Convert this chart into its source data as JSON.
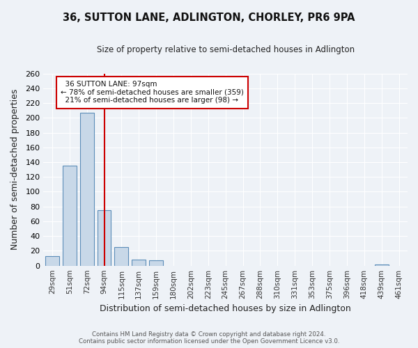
{
  "title": "36, SUTTON LANE, ADLINGTON, CHORLEY, PR6 9PA",
  "subtitle": "Size of property relative to semi-detached houses in Adlington",
  "xlabel": "Distribution of semi-detached houses by size in Adlington",
  "ylabel": "Number of semi-detached properties",
  "footer_line1": "Contains HM Land Registry data © Crown copyright and database right 2024.",
  "footer_line2": "Contains public sector information licensed under the Open Government Licence v3.0.",
  "bins": [
    "29sqm",
    "51sqm",
    "72sqm",
    "94sqm",
    "115sqm",
    "137sqm",
    "159sqm",
    "180sqm",
    "202sqm",
    "223sqm",
    "245sqm",
    "267sqm",
    "288sqm",
    "310sqm",
    "331sqm",
    "353sqm",
    "375sqm",
    "396sqm",
    "418sqm",
    "439sqm",
    "461sqm"
  ],
  "values": [
    13,
    135,
    207,
    75,
    25,
    8,
    7,
    0,
    0,
    0,
    0,
    0,
    0,
    0,
    0,
    0,
    0,
    0,
    0,
    2,
    0
  ],
  "property_size": 97,
  "property_size_label": "97sqm",
  "property_name": "36 SUTTON LANE",
  "pct_smaller": 78,
  "count_smaller": 359,
  "pct_larger": 21,
  "count_larger": 98,
  "bar_color": "#c8d8e8",
  "bar_edge_color": "#5b8db8",
  "redline_color": "#cc0000",
  "annotation_box_edge": "#cc0000",
  "bg_color": "#eef2f7",
  "plot_bg_color": "#eef2f7",
  "ylim": [
    0,
    260
  ],
  "yticks": [
    0,
    20,
    40,
    60,
    80,
    100,
    120,
    140,
    160,
    180,
    200,
    220,
    240,
    260
  ]
}
